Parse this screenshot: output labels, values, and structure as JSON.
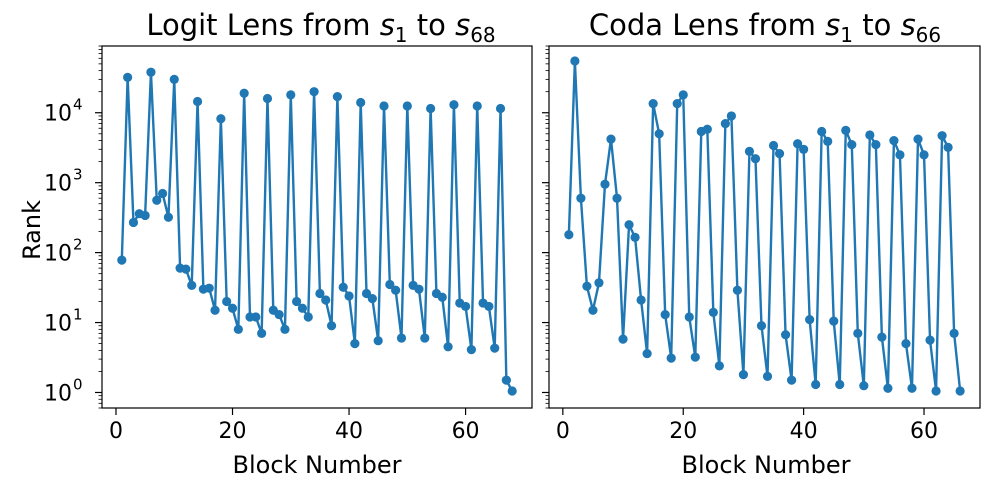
{
  "colors": {
    "series": "#1f77b4"
  },
  "chart_data": [
    {
      "type": "line",
      "title": {
        "prefix": "Logit Lens from ",
        "from_var": "s",
        "from_sub": "1",
        "mid": " to ",
        "to_var": "s",
        "to_sub": "68"
      },
      "xlabel": "Block Number",
      "ylabel": "Rank",
      "yscale": "log",
      "xlim": [
        -2.4,
        71.4
      ],
      "ylim": [
        0.6,
        90000
      ],
      "x_ticks": [
        {
          "v": 0,
          "label": "0"
        },
        {
          "v": 20,
          "label": "20"
        },
        {
          "v": 40,
          "label": "40"
        },
        {
          "v": 60,
          "label": "60"
        }
      ],
      "y_ticks": [
        {
          "v": 1,
          "base": "10",
          "exp": "0"
        },
        {
          "v": 10,
          "base": "10",
          "exp": "1"
        },
        {
          "v": 100,
          "base": "10",
          "exp": "2"
        },
        {
          "v": 1000,
          "base": "10",
          "exp": "3"
        },
        {
          "v": 10000,
          "base": "10",
          "exp": "4"
        }
      ],
      "marker": "circle",
      "x": [
        1,
        2,
        3,
        4,
        5,
        6,
        7,
        8,
        9,
        10,
        11,
        12,
        13,
        14,
        15,
        16,
        17,
        18,
        19,
        20,
        21,
        22,
        23,
        24,
        25,
        26,
        27,
        28,
        29,
        30,
        31,
        32,
        33,
        34,
        35,
        36,
        37,
        38,
        39,
        40,
        41,
        42,
        43,
        44,
        45,
        46,
        47,
        48,
        49,
        50,
        51,
        52,
        53,
        54,
        55,
        56,
        57,
        58,
        59,
        60,
        61,
        62,
        63,
        64,
        65,
        66,
        67,
        68
      ],
      "y": [
        78,
        32000,
        270,
        360,
        340,
        38000,
        560,
        700,
        320,
        30000,
        60,
        58,
        34,
        14500,
        30,
        31,
        15,
        8200,
        20,
        16,
        8,
        19000,
        12,
        12,
        7,
        16000,
        15,
        13,
        8,
        18000,
        20,
        16,
        12,
        20000,
        26,
        21,
        9,
        17000,
        32,
        24,
        5,
        14000,
        26,
        22,
        5.5,
        12500,
        35,
        29,
        6,
        12500,
        34,
        30,
        6,
        11500,
        26,
        23,
        4.5,
        13000,
        19,
        17,
        4.1,
        12500,
        19,
        17,
        4.3,
        11500,
        1.5,
        1.05
      ]
    },
    {
      "type": "line",
      "title": {
        "prefix": "Coda Lens from ",
        "from_var": "s",
        "from_sub": "1",
        "mid": " to ",
        "to_var": "s",
        "to_sub": "66"
      },
      "xlabel": "Block Number",
      "yscale": "log",
      "xlim": [
        -2.3,
        69.3
      ],
      "ylim": [
        0.6,
        90000
      ],
      "x_ticks": [
        {
          "v": 0,
          "label": "0"
        },
        {
          "v": 20,
          "label": "20"
        },
        {
          "v": 40,
          "label": "40"
        },
        {
          "v": 60,
          "label": "60"
        }
      ],
      "marker": "circle",
      "x": [
        1,
        2,
        3,
        4,
        5,
        6,
        7,
        8,
        9,
        10,
        11,
        12,
        13,
        14,
        15,
        16,
        17,
        18,
        19,
        20,
        21,
        22,
        23,
        24,
        25,
        26,
        27,
        28,
        29,
        30,
        31,
        32,
        33,
        34,
        35,
        36,
        37,
        38,
        39,
        40,
        41,
        42,
        43,
        44,
        45,
        46,
        47,
        48,
        49,
        50,
        51,
        52,
        53,
        54,
        55,
        56,
        57,
        58,
        59,
        60,
        61,
        62,
        63,
        64,
        65,
        66
      ],
      "y": [
        180,
        55000,
        600,
        33,
        15,
        37,
        950,
        4200,
        600,
        5.8,
        250,
        165,
        21,
        3.6,
        13500,
        5000,
        13,
        3.1,
        13500,
        18000,
        12,
        3.2,
        5400,
        5800,
        14,
        2.4,
        7000,
        9000,
        29,
        1.8,
        2800,
        2200,
        9,
        1.7,
        3400,
        2600,
        6.7,
        1.5,
        3600,
        3000,
        11,
        1.3,
        5400,
        3900,
        10.5,
        1.3,
        5600,
        3500,
        7,
        1.25,
        4800,
        3500,
        6.2,
        1.15,
        4000,
        2500,
        5,
        1.15,
        4200,
        2500,
        5.6,
        1.05,
        4700,
        3200,
        7,
        1.05
      ]
    }
  ]
}
